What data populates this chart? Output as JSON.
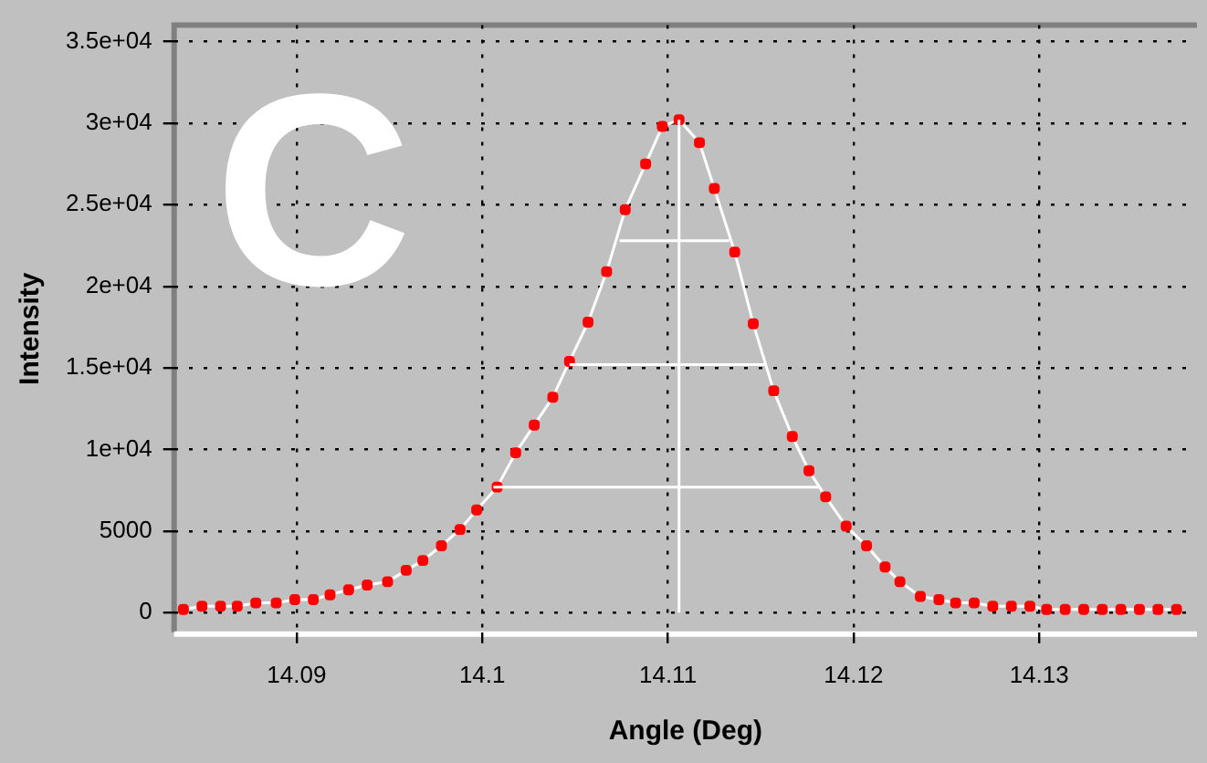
{
  "chart_data": {
    "type": "line",
    "xlabel": "Angle (Deg)",
    "ylabel": "Intensity",
    "annotations": [
      "C"
    ],
    "xlim": [
      14.0834,
      14.1385
    ],
    "xticks": [
      14.09,
      14.1,
      14.11,
      14.12,
      14.13
    ],
    "ylim": [
      -1200,
      36000
    ],
    "yticks": [
      0,
      5000,
      {
        "value": 10000,
        "label": "1e+04"
      },
      {
        "value": 15000,
        "label": "1.5e+04"
      },
      {
        "value": 20000,
        "label": "2e+04"
      },
      {
        "value": 25000,
        "label": "2.5e+04"
      },
      {
        "value": 30000,
        "label": "3e+04"
      },
      {
        "value": 35000,
        "label": "3.5e+04"
      }
    ],
    "grid": true,
    "marker": "square",
    "line_style": "solid",
    "series": [
      {
        "color": "#ff0000",
        "x": [
          14.0839,
          14.0849,
          14.0859,
          14.0868,
          14.0878,
          14.0889,
          14.0899,
          14.0909,
          14.0918,
          14.0928,
          14.0938,
          14.0949,
          14.0959,
          14.0968,
          14.0978,
          14.0988,
          14.0997,
          14.1008,
          14.1018,
          14.1028,
          14.1038,
          14.1047,
          14.1057,
          14.1067,
          14.1077,
          14.1088,
          14.1097,
          14.1106,
          14.1117,
          14.1125,
          14.1136,
          14.1146,
          14.1157,
          14.1167,
          14.1176,
          14.1185,
          14.1196,
          14.1207,
          14.1217,
          14.1225,
          14.1236,
          14.1246,
          14.1255,
          14.1265,
          14.1275,
          14.1285,
          14.1295,
          14.1304,
          14.1314,
          14.1324,
          14.1334,
          14.1344,
          14.1354,
          14.1364,
          14.1374
        ],
        "values": [
          200,
          400,
          400,
          400,
          600,
          600,
          800,
          800,
          1100,
          1400,
          1700,
          1900,
          2600,
          3200,
          4100,
          5100,
          6300,
          7700,
          9800,
          11500,
          13200,
          15400,
          17800,
          20900,
          24700,
          27500,
          29800,
          30200,
          28800,
          26000,
          22100,
          17700,
          13600,
          10800,
          8700,
          7100,
          5300,
          4100,
          2800,
          1900,
          1000,
          800,
          600,
          600,
          400,
          400,
          400,
          200,
          200,
          200,
          200,
          200,
          200,
          200,
          200
        ]
      },
      {
        "color": "#ffffff",
        "marker": "none",
        "x": [
          14.1106,
          14.1106
        ],
        "values": [
          0,
          30200
        ]
      },
      {
        "color": "#ffffff",
        "marker": "none",
        "x": [
          14.1074,
          14.1133
        ],
        "values": [
          22800,
          22800
        ]
      },
      {
        "color": "#ffffff",
        "marker": "none",
        "x": [
          14.1047,
          14.1153
        ],
        "values": [
          15200,
          15200
        ]
      },
      {
        "color": "#ffffff",
        "marker": "none",
        "x": [
          14.1006,
          14.1181
        ],
        "values": [
          7700,
          7700
        ]
      }
    ]
  }
}
